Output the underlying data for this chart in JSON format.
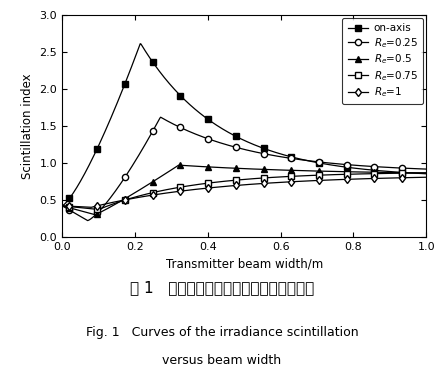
{
  "xlabel": "Transmitter beam width/m",
  "ylabel": "Scintillation index",
  "xlim": [
    0,
    1.0
  ],
  "ylim": [
    0,
    3.0
  ],
  "xticks": [
    0,
    0.2,
    0.4,
    0.6,
    0.8,
    1.0
  ],
  "yticks": [
    0,
    0.5,
    1.0,
    1.5,
    2.0,
    2.5,
    3.0
  ],
  "legend_labels": [
    "on-axis",
    "$R_e$=0.25",
    "$R_e$=0.5",
    "$R_e$=0.75",
    "$R_e$=1"
  ],
  "caption_cn": "图 1   光强闪烁随信号光束宽度的变化曲线",
  "caption_en1": "Fig. 1   Curves of the irradiance scintillation",
  "caption_en2": "versus beam width",
  "bg_color": "#ffffff",
  "line_color": "#000000"
}
